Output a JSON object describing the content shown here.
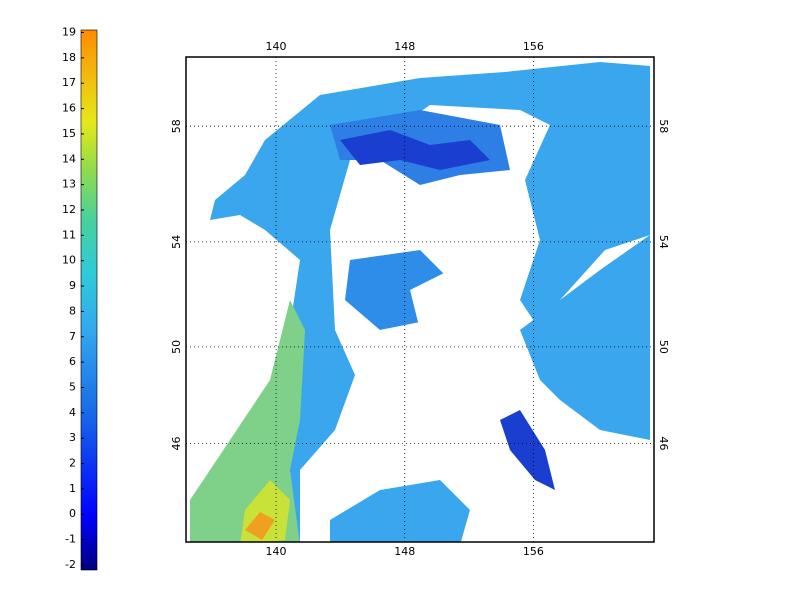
{
  "colorbar": {
    "lim": [
      -2.2,
      19.1
    ],
    "ticks": [
      -2,
      -1,
      0,
      1,
      2,
      3,
      4,
      5,
      6,
      7,
      8,
      9,
      10,
      11,
      12,
      13,
      14,
      15,
      16,
      17,
      18,
      19
    ]
  },
  "map": {
    "xlim": [
      134.4,
      163.5
    ],
    "ylim": [
      41.6,
      60.2
    ],
    "xticks": [
      140,
      148,
      156
    ],
    "yticks": [
      46,
      50,
      54,
      58
    ]
  }
}
